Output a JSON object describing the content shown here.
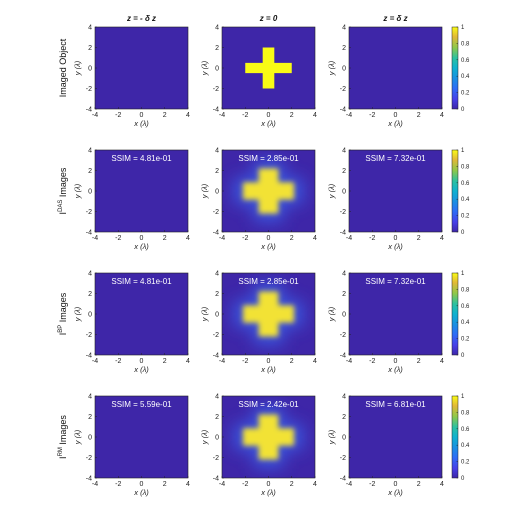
{
  "chart_data": {
    "type": "heatmap",
    "column_titles": [
      "z = - δ z",
      "z = 0",
      "z = δ z"
    ],
    "row_labels": [
      "Imaged Object",
      "I^DAS Images",
      "I^BP Images",
      "I^RM Images"
    ],
    "row_label_parts": [
      {
        "base": "Imaged Object",
        "sup": "",
        "tail": ""
      },
      {
        "base": "I",
        "sup": "DAS",
        "tail": " Images"
      },
      {
        "base": "I",
        "sup": "BP",
        "tail": " Images"
      },
      {
        "base": "I",
        "sup": "RM",
        "tail": " Images"
      }
    ],
    "xlabel": "x (λ)",
    "ylabel": "y (λ)",
    "xlim": [
      -4,
      4
    ],
    "ylim": [
      -4,
      4
    ],
    "xticks": [
      -4,
      -2,
      0,
      2,
      4
    ],
    "yticks": [
      -4,
      -2,
      0,
      2,
      4
    ],
    "colorbar_ticks": [
      0,
      0.2,
      0.4,
      0.6,
      0.8,
      1
    ],
    "colorbar_tick_labels": [
      "0",
      "0.2",
      "0.4",
      "0.6",
      "0.8",
      "1"
    ],
    "clim": [
      0,
      1
    ],
    "colormap": "parula",
    "background_color": "#3e26a8",
    "ssim": [
      [
        null,
        null,
        null
      ],
      [
        "SSIM = 4.81e-01",
        "SSIM = 2.85e-01",
        "SSIM = 7.32e-01"
      ],
      [
        "SSIM = 4.81e-01",
        "SSIM = 2.85e-01",
        "SSIM = 7.32e-01"
      ],
      [
        "SSIM = 5.59e-01",
        "SSIM = 2.42e-01",
        "SSIM = 6.81e-01"
      ]
    ],
    "object": {
      "shape": "cross",
      "arm_half_length": 2,
      "arm_half_width": 0.5
    }
  }
}
